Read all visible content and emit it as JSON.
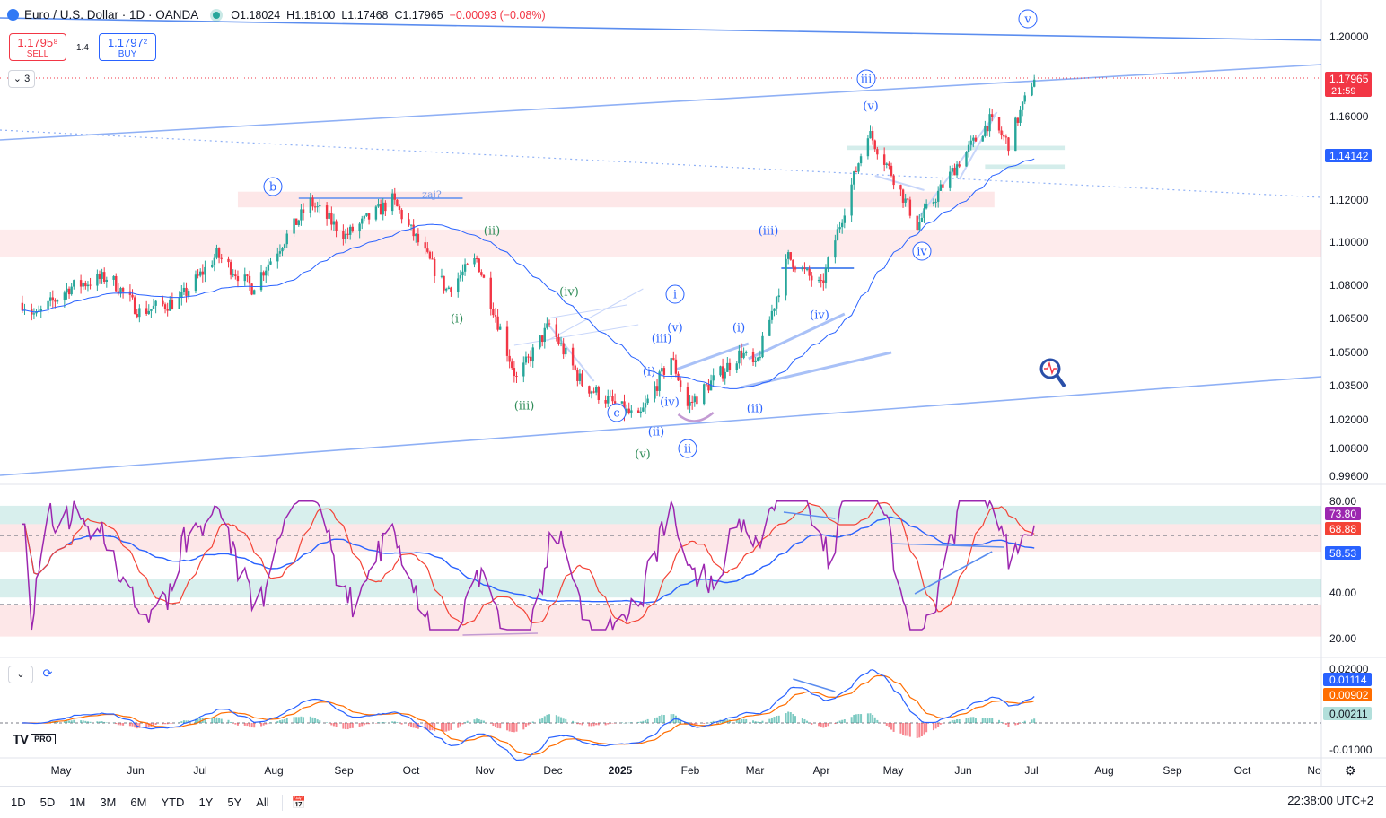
{
  "header": {
    "symbol_title": "Euro / U.S. Dollar · 1D · OANDA",
    "ohlc": [
      {
        "k": "O",
        "v": "1.18024"
      },
      {
        "k": "H",
        "v": "1.18100"
      },
      {
        "k": "L",
        "v": "1.17468"
      },
      {
        "k": "C",
        "v": "1.17965"
      }
    ],
    "change": "−0.00093 (−0.08%)",
    "sell_price": "1.1795⁸",
    "sell_label": "SELL",
    "spread": "1.4",
    "buy_price": "1.1797²",
    "buy_label": "BUY",
    "indicators_count": "3"
  },
  "colors": {
    "up": "#26a69a",
    "down": "#f23645",
    "line": "#2962ff",
    "trendline": "#8fb0f5",
    "rsi": "#9c27b0",
    "rsi_ma": "#f44336",
    "macd": "#2962ff",
    "signal": "#ff6d00"
  },
  "price_axis": {
    "labels": [
      "1.20000",
      "1.16000",
      "1.12000",
      "1.10000",
      "1.08000",
      "1.06500",
      "1.05000",
      "1.03500",
      "1.02000",
      "1.00800",
      "0.99600"
    ],
    "last_price": "1.17965",
    "countdown": "21:59",
    "ma_value": "1.14142"
  },
  "rsi_axis": {
    "labels": [
      "80.00",
      "40.00",
      "20.00"
    ],
    "rsi_value": "73.80",
    "rsi_ma_value": "68.88",
    "slow_value": "58.53"
  },
  "macd_axis": {
    "labels": [
      "0.02000",
      "-0.01000"
    ],
    "macd_value": "0.01114",
    "signal_value": "0.00902",
    "hist_value": "0.00211"
  },
  "time_axis": [
    "May",
    "Jun",
    "Jul",
    "Aug",
    "Sep",
    "Oct",
    "Nov",
    "Dec",
    "2025",
    "Feb",
    "Mar",
    "Apr",
    "May",
    "Jun",
    "Jul",
    "Aug",
    "Sep",
    "Oct",
    "No"
  ],
  "wave_labels": [
    {
      "t": "b",
      "circled": true
    },
    {
      "t": "zaj?",
      "circled": false
    },
    {
      "t": "(ii)",
      "circled": false
    },
    {
      "t": "(i)",
      "circled": false
    },
    {
      "t": "(iv)",
      "circled": false
    },
    {
      "t": "(iii)",
      "circled": false
    },
    {
      "t": "c",
      "circled": true
    },
    {
      "t": "(v)",
      "circled": false
    },
    {
      "t": "i",
      "circled": true
    },
    {
      "t": "(v)",
      "circled": false
    },
    {
      "t": "(iii)",
      "circled": false
    },
    {
      "t": "(i)",
      "circled": false
    },
    {
      "t": "(iv)",
      "circled": false
    },
    {
      "t": "(ii)",
      "circled": false
    },
    {
      "t": "ii",
      "circled": true
    },
    {
      "t": "(i)",
      "circled": false
    },
    {
      "t": "(ii)",
      "circled": false
    },
    {
      "t": "(iii)",
      "circled": false
    },
    {
      "t": "(iv)",
      "circled": false
    },
    {
      "t": "iii",
      "circled": true
    },
    {
      "t": "(v)",
      "circled": false
    },
    {
      "t": "iv",
      "circled": true
    },
    {
      "t": "v",
      "circled": true
    }
  ],
  "range_buttons": [
    "1D",
    "5D",
    "1M",
    "3M",
    "6M",
    "YTD",
    "1Y",
    "5Y",
    "All"
  ],
  "clock": "22:38:00 UTC+2",
  "chart_data": {
    "type": "candlestick",
    "symbol": "EURUSD",
    "timeframe": "1D",
    "price_range": [
      0.99,
      1.21
    ],
    "price_path": [
      {
        "date": "2024-04-25",
        "close": 1.072
      },
      {
        "date": "2024-05-01",
        "close": 1.066
      },
      {
        "date": "2024-05-15",
        "close": 1.079
      },
      {
        "date": "2024-06-01",
        "close": 1.084
      },
      {
        "date": "2024-06-14",
        "close": 1.068
      },
      {
        "date": "2024-07-01",
        "close": 1.073
      },
      {
        "date": "2024-07-17",
        "close": 1.094
      },
      {
        "date": "2024-08-01",
        "close": 1.079
      },
      {
        "date": "2024-08-26",
        "close": 1.119
      },
      {
        "date": "2024-09-10",
        "close": 1.103
      },
      {
        "date": "2024-09-30",
        "close": 1.12
      },
      {
        "date": "2024-10-23",
        "close": 1.078
      },
      {
        "date": "2024-11-05",
        "close": 1.092
      },
      {
        "date": "2024-11-22",
        "close": 1.038
      },
      {
        "date": "2024-12-06",
        "close": 1.062
      },
      {
        "date": "2024-12-20",
        "close": 1.036
      },
      {
        "date": "2025-01-13",
        "close": 1.02
      },
      {
        "date": "2025-01-27",
        "close": 1.048
      },
      {
        "date": "2025-02-03",
        "close": 1.026
      },
      {
        "date": "2025-02-26",
        "close": 1.05
      },
      {
        "date": "2025-03-04",
        "close": 1.043
      },
      {
        "date": "2025-03-18",
        "close": 1.093
      },
      {
        "date": "2025-04-01",
        "close": 1.079
      },
      {
        "date": "2025-04-21",
        "close": 1.153
      },
      {
        "date": "2025-05-01",
        "close": 1.133
      },
      {
        "date": "2025-05-12",
        "close": 1.108
      },
      {
        "date": "2025-05-29",
        "close": 1.137
      },
      {
        "date": "2025-06-12",
        "close": 1.158
      },
      {
        "date": "2025-06-20",
        "close": 1.147
      },
      {
        "date": "2025-07-01",
        "close": 1.18
      }
    ],
    "last_close": 1.17965,
    "moving_average_last": 1.14142,
    "rsi": {
      "range": [
        15,
        85
      ],
      "levels": [
        70,
        50,
        30
      ],
      "rsi": 73.8,
      "rsi_ma": 68.88,
      "slow": 58.53
    },
    "macd": {
      "range": [
        -0.012,
        0.022
      ],
      "macd": 0.01114,
      "signal": 0.00902,
      "hist": 0.00211
    }
  }
}
